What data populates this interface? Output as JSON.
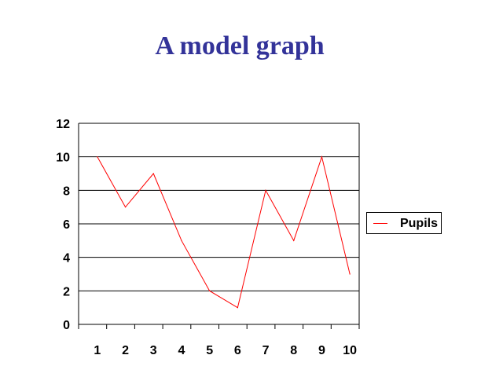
{
  "title": "A model graph",
  "chart_data": {
    "type": "line",
    "categories": [
      "1",
      "2",
      "3",
      "4",
      "5",
      "6",
      "7",
      "8",
      "9",
      "10"
    ],
    "series": [
      {
        "name": "Pupils",
        "values": [
          10,
          7,
          9,
          5,
          2,
          1,
          8,
          5,
          10,
          3
        ],
        "color": "#ff0000"
      }
    ],
    "y_ticks": [
      "0",
      "2",
      "4",
      "6",
      "8",
      "10",
      "12"
    ],
    "ylim": [
      0,
      12
    ],
    "grid": true,
    "legend_position": "right"
  }
}
